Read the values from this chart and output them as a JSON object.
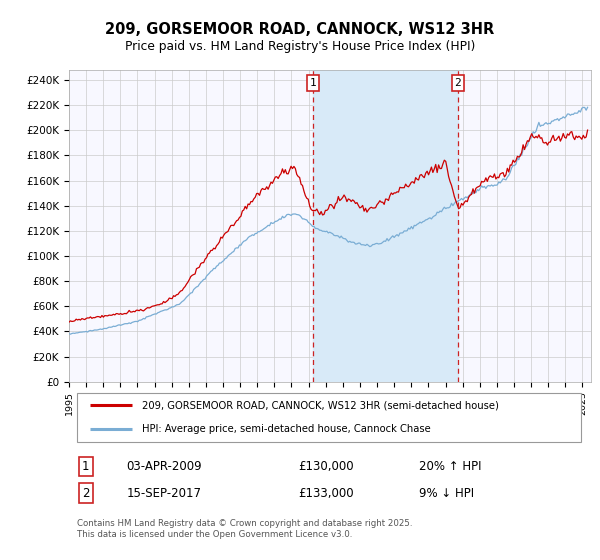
{
  "title": "209, GORSEMOOR ROAD, CANNOCK, WS12 3HR",
  "subtitle": "Price paid vs. HM Land Registry's House Price Index (HPI)",
  "ylabel_ticks": [
    "£0",
    "£20K",
    "£40K",
    "£60K",
    "£80K",
    "£100K",
    "£120K",
    "£140K",
    "£160K",
    "£180K",
    "£200K",
    "£220K",
    "£240K"
  ],
  "ytick_values": [
    0,
    20000,
    40000,
    60000,
    80000,
    100000,
    120000,
    140000,
    160000,
    180000,
    200000,
    220000,
    240000
  ],
  "ylim": [
    0,
    248000
  ],
  "xstart": 1995.0,
  "xend": 2025.5,
  "vline1_x": 2009.25,
  "vline2_x": 2017.72,
  "line1_color": "#cc0000",
  "line2_color": "#7aadd4",
  "line1_label": "209, GORSEMOOR ROAD, CANNOCK, WS12 3HR (semi-detached house)",
  "line2_label": "HPI: Average price, semi-detached house, Cannock Chase",
  "shade_color": "#d8eaf8",
  "annotation1_num": "1",
  "annotation1_date": "03-APR-2009",
  "annotation1_price": "£130,000",
  "annotation1_hpi": "20% ↑ HPI",
  "annotation2_num": "2",
  "annotation2_date": "15-SEP-2017",
  "annotation2_price": "£133,000",
  "annotation2_hpi": "9% ↓ HPI",
  "footer": "Contains HM Land Registry data © Crown copyright and database right 2025.\nThis data is licensed under the Open Government Licence v3.0.",
  "bg_color": "#f8f8ff",
  "grid_color": "#cccccc",
  "xtick_years": [
    1995,
    1996,
    1997,
    1998,
    1999,
    2000,
    2001,
    2002,
    2003,
    2004,
    2005,
    2006,
    2007,
    2008,
    2009,
    2010,
    2011,
    2012,
    2013,
    2014,
    2015,
    2016,
    2017,
    2018,
    2019,
    2020,
    2021,
    2022,
    2023,
    2024,
    2025
  ]
}
